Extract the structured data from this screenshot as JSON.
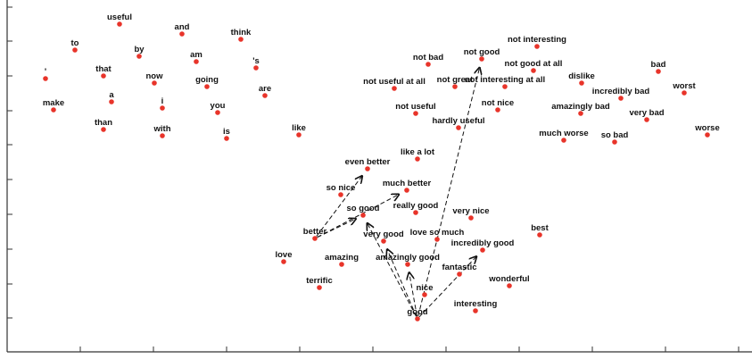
{
  "chart_data": {
    "type": "scatter",
    "title": "",
    "xlabel": "",
    "ylabel": "",
    "xlim": [
      0,
      843
    ],
    "ylim": [
      0,
      402
    ],
    "y_inverted": true,
    "grid": false,
    "colors": {
      "point": "#e8342a",
      "label": "#111111",
      "arrow": "#111111",
      "axis": "#333333"
    },
    "x_ticks": [
      90,
      172,
      254,
      336,
      418,
      500,
      582,
      664,
      746,
      828
    ],
    "y_ticks": [
      8,
      46,
      85,
      124,
      162,
      201,
      240,
      279,
      318,
      356
    ],
    "points": [
      {
        "label": "useful",
        "x": 134,
        "y": 27
      },
      {
        "label": "and",
        "x": 204,
        "y": 38
      },
      {
        "label": "think",
        "x": 270,
        "y": 44
      },
      {
        "label": "to",
        "x": 84,
        "y": 56
      },
      {
        "label": "by",
        "x": 156,
        "y": 63
      },
      {
        "label": "am",
        "x": 220,
        "y": 69
      },
      {
        "label": "'s",
        "x": 287,
        "y": 76
      },
      {
        "label": "'",
        "x": 51,
        "y": 88
      },
      {
        "label": "that",
        "x": 116,
        "y": 85
      },
      {
        "label": "now",
        "x": 173,
        "y": 93
      },
      {
        "label": "going",
        "x": 232,
        "y": 97
      },
      {
        "label": "are",
        "x": 297,
        "y": 107
      },
      {
        "label": "a",
        "x": 125,
        "y": 114
      },
      {
        "label": "i",
        "x": 182,
        "y": 121
      },
      {
        "label": "make",
        "x": 60,
        "y": 123
      },
      {
        "label": "you",
        "x": 244,
        "y": 126
      },
      {
        "label": "than",
        "x": 116,
        "y": 145
      },
      {
        "label": "with",
        "x": 182,
        "y": 152
      },
      {
        "label": "is",
        "x": 254,
        "y": 155
      },
      {
        "label": "like",
        "x": 335,
        "y": 151
      },
      {
        "label": "not interesting",
        "x": 602,
        "y": 52
      },
      {
        "label": "not good",
        "x": 540,
        "y": 66
      },
      {
        "label": "not bad",
        "x": 480,
        "y": 72
      },
      {
        "label": "not good at all",
        "x": 598,
        "y": 79
      },
      {
        "label": "bad",
        "x": 738,
        "y": 80
      },
      {
        "label": "dislike",
        "x": 652,
        "y": 93
      },
      {
        "label": "not useful at all",
        "x": 442,
        "y": 99
      },
      {
        "label": "not great",
        "x": 510,
        "y": 97
      },
      {
        "label": "not interesting at all",
        "x": 566,
        "y": 97
      },
      {
        "label": "worst",
        "x": 767,
        "y": 104
      },
      {
        "label": "incredibly bad",
        "x": 696,
        "y": 110
      },
      {
        "label": "not useful",
        "x": 466,
        "y": 127
      },
      {
        "label": "not nice",
        "x": 558,
        "y": 123
      },
      {
        "label": "amazingly bad",
        "x": 651,
        "y": 127
      },
      {
        "label": "very bad",
        "x": 725,
        "y": 134
      },
      {
        "label": "hardly useful",
        "x": 514,
        "y": 143
      },
      {
        "label": "worse",
        "x": 793,
        "y": 151
      },
      {
        "label": "much worse",
        "x": 632,
        "y": 157
      },
      {
        "label": "so bad",
        "x": 689,
        "y": 159
      },
      {
        "label": "like a lot",
        "x": 468,
        "y": 178
      },
      {
        "label": "even better",
        "x": 412,
        "y": 189
      },
      {
        "label": "much better",
        "x": 456,
        "y": 213
      },
      {
        "label": "so nice",
        "x": 382,
        "y": 218
      },
      {
        "label": "so good",
        "x": 407,
        "y": 241
      },
      {
        "label": "really good",
        "x": 466,
        "y": 238
      },
      {
        "label": "very nice",
        "x": 528,
        "y": 244
      },
      {
        "label": "better",
        "x": 353,
        "y": 267
      },
      {
        "label": "very good",
        "x": 430,
        "y": 270
      },
      {
        "label": "love so much",
        "x": 490,
        "y": 268
      },
      {
        "label": "best",
        "x": 605,
        "y": 263
      },
      {
        "label": "incredibly good",
        "x": 541,
        "y": 280
      },
      {
        "label": "love",
        "x": 318,
        "y": 293
      },
      {
        "label": "amazing",
        "x": 383,
        "y": 296
      },
      {
        "label": "amazingly good",
        "x": 457,
        "y": 296
      },
      {
        "label": "fantastic",
        "x": 515,
        "y": 307
      },
      {
        "label": "terrific",
        "x": 358,
        "y": 322
      },
      {
        "label": "wonderful",
        "x": 571,
        "y": 320
      },
      {
        "label": "nice",
        "x": 476,
        "y": 330
      },
      {
        "label": "interesting",
        "x": 533,
        "y": 348
      },
      {
        "label": "good",
        "x": 468,
        "y": 357
      }
    ],
    "arrows": [
      {
        "from": "better",
        "to": "even better"
      },
      {
        "from": "better",
        "to": "much better"
      },
      {
        "from": "better",
        "to": "so good"
      },
      {
        "from": "good",
        "to": "not good"
      },
      {
        "from": "good",
        "to": "very good"
      },
      {
        "from": "good",
        "to": "amazingly good"
      },
      {
        "from": "good",
        "to": "incredibly good"
      },
      {
        "from": "good",
        "to": "so good"
      }
    ]
  }
}
